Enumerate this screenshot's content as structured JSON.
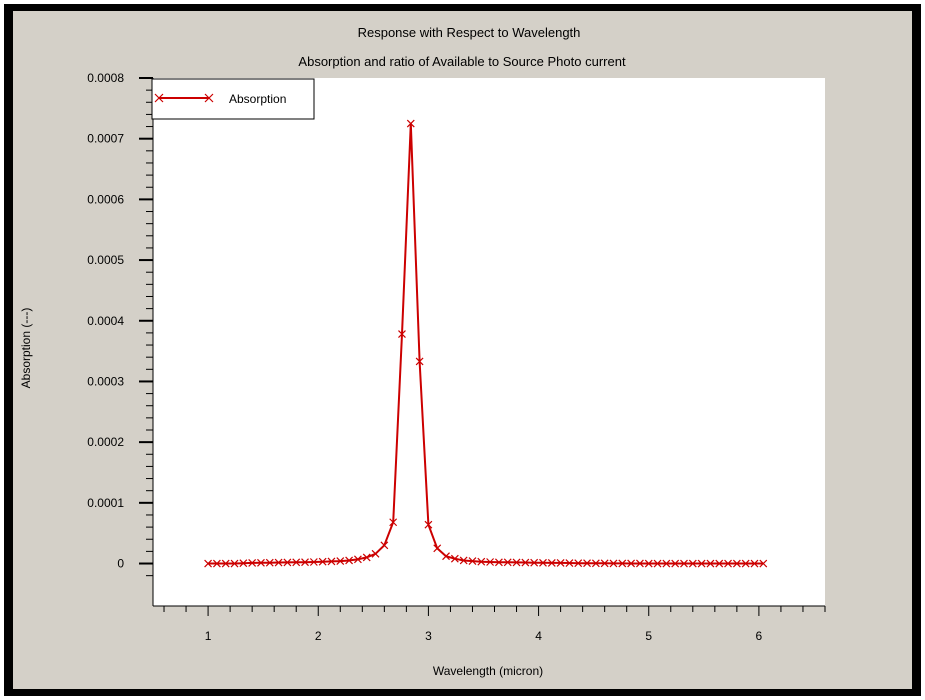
{
  "chart_data": {
    "type": "line",
    "title": "Response with Respect to Wavelength",
    "subtitle": "Absorption and ratio of Available to Source Photo current",
    "xlabel": "Wavelength (micron)",
    "ylabel": "Absorption (---)",
    "xlim": [
      0.5,
      6.6
    ],
    "ylim": [
      -7e-05,
      0.0008
    ],
    "x_ticks": [
      "1",
      "2",
      "3",
      "4",
      "5",
      "6"
    ],
    "y_ticks": [
      "0",
      "0.0001",
      "0.0002",
      "0.0003",
      "0.0004",
      "0.0005",
      "0.0006",
      "0.0007",
      "0.0008"
    ],
    "grid": false,
    "legend_position": "top-left",
    "series": [
      {
        "name": "Absorption",
        "color": "#cc0000",
        "marker": "x",
        "x": [
          1.0,
          1.08,
          1.16,
          1.24,
          1.32,
          1.4,
          1.48,
          1.56,
          1.64,
          1.72,
          1.8,
          1.88,
          1.96,
          2.04,
          2.12,
          2.2,
          2.28,
          2.36,
          2.44,
          2.52,
          2.6,
          2.68,
          2.76,
          2.84,
          2.92,
          3.0,
          3.08,
          3.16,
          3.24,
          3.32,
          3.4,
          3.48,
          3.56,
          3.64,
          3.72,
          3.8,
          3.88,
          3.96,
          4.04,
          4.12,
          4.2,
          4.28,
          4.36,
          4.44,
          4.52,
          4.6,
          4.68,
          4.76,
          4.84,
          4.92,
          5.0,
          5.08,
          5.16,
          5.24,
          5.32,
          5.4,
          5.48,
          5.56,
          5.64,
          5.72,
          5.8,
          5.88,
          5.96,
          6.04
        ],
        "y": [
          0.0,
          0.0,
          0.0,
          0.0,
          5e-07,
          1e-06,
          1.2e-06,
          1.4e-06,
          1.6e-06,
          1.8e-06,
          2e-06,
          2.2e-06,
          2.5e-06,
          3e-06,
          3.5e-06,
          4e-06,
          5e-06,
          7e-06,
          1e-05,
          1.6e-05,
          3e-05,
          6.8e-05,
          0.000378,
          0.000725,
          0.000333,
          6.4e-05,
          2.5e-05,
          1.2e-05,
          8e-06,
          5e-06,
          4e-06,
          3e-06,
          2.5e-06,
          2e-06,
          2e-06,
          1.8e-06,
          1.6e-06,
          1.4e-06,
          1.2e-06,
          1e-06,
          1e-06,
          8e-07,
          6e-07,
          5e-07,
          4e-07,
          3e-07,
          2e-07,
          2e-07,
          1e-07,
          1e-07,
          0.0,
          0.0,
          0.0,
          0.0,
          0.0,
          0.0,
          0.0,
          0.0,
          0.0,
          0.0,
          0.0,
          0.0,
          0.0,
          0.0
        ]
      }
    ]
  }
}
